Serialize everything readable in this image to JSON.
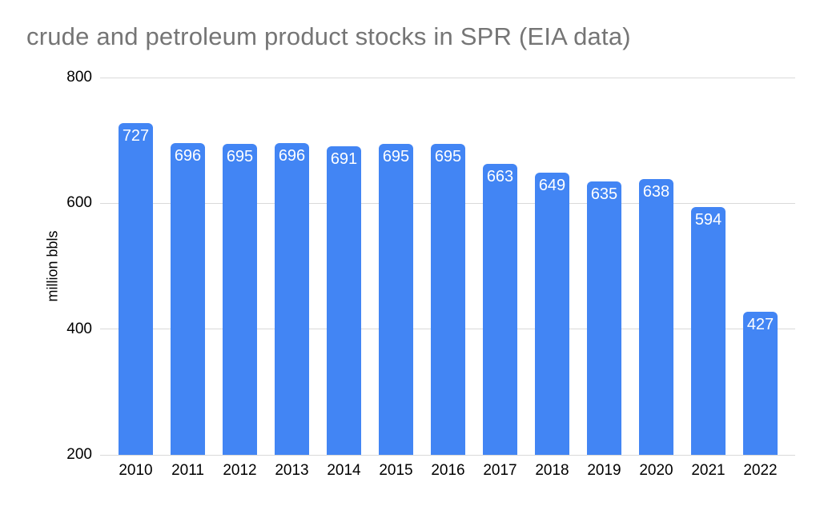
{
  "title": "crude and petroleum product stocks in SPR (EIA data)",
  "colors": {
    "bar": "#4285F4",
    "bar_label": "#FFFFFF",
    "title": "#757575",
    "axis_label": "#000000",
    "gridline": "#D9D9D9",
    "background": "#FFFFFF"
  },
  "chart_data": {
    "type": "bar",
    "title": "crude and petroleum product stocks in SPR (EIA data)",
    "categories": [
      "2010",
      "2011",
      "2012",
      "2013",
      "2014",
      "2015",
      "2016",
      "2017",
      "2018",
      "2019",
      "2020",
      "2021",
      "2022"
    ],
    "values": [
      727,
      696,
      695,
      696,
      691,
      695,
      695,
      663,
      649,
      635,
      638,
      594,
      427
    ],
    "xlabel": "",
    "ylabel": "million bbls",
    "ylim": [
      200,
      800
    ],
    "yticks": [
      200,
      400,
      600,
      800
    ],
    "grid": true,
    "legend": "none",
    "bar_value_labels": true,
    "bar_color": "#4285F4",
    "bar_label_color": "#FFFFFF"
  }
}
